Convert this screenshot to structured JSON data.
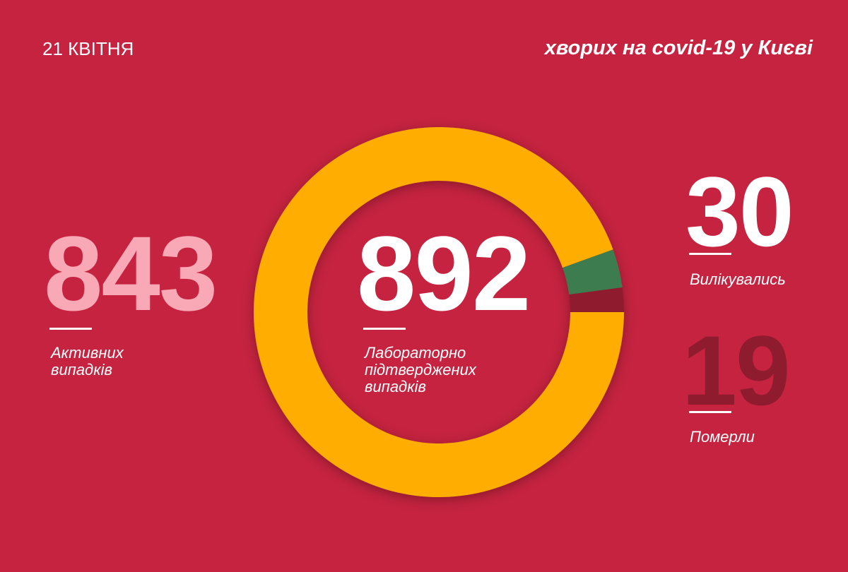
{
  "chart_data": {
    "type": "donut",
    "date": "21 КВІТНЯ",
    "title": "хворих на covid-19 у Києві",
    "total": 892,
    "total_label": "Лабораторно підтверджених випадків",
    "categories": [
      "Активних випадків",
      "Вилікувались",
      "Померли"
    ],
    "values": [
      843,
      30,
      19
    ],
    "colors": [
      "#ffad00",
      "#3e7b4f",
      "#8f1b2e"
    ],
    "label_colors": [
      "#f9a8b6",
      "#ffffff",
      "#8f1b2e"
    ]
  }
}
